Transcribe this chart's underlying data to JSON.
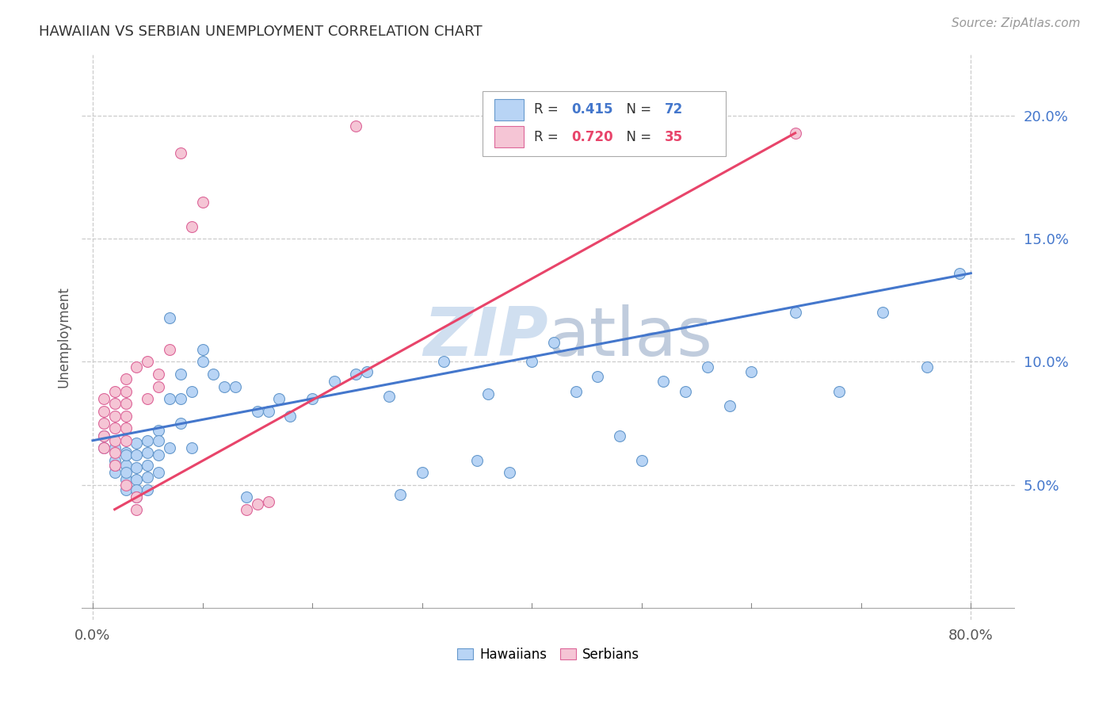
{
  "title": "HAWAIIAN VS SERBIAN UNEMPLOYMENT CORRELATION CHART",
  "source": "Source: ZipAtlas.com",
  "ylabel": "Unemployment",
  "xlim": [
    0.0,
    0.8
  ],
  "ylim": [
    0.0,
    0.22
  ],
  "x_ticks": [
    0.0,
    0.8
  ],
  "x_tick_labels": [
    "0.0%",
    "80.0%"
  ],
  "y_ticks": [
    0.05,
    0.1,
    0.15,
    0.2
  ],
  "y_tick_labels": [
    "5.0%",
    "10.0%",
    "15.0%",
    "20.0%"
  ],
  "hawaiian_color": "#b8d4f5",
  "hawaiian_edge": "#6699cc",
  "serbian_color": "#f5c5d5",
  "serbian_edge": "#dd6699",
  "blue_line_color": "#4477cc",
  "pink_line_color": "#e8446a",
  "watermark_color": "#d0dff0",
  "R_hawaiian": 0.415,
  "N_hawaiian": 72,
  "R_serbian": 0.72,
  "N_serbian": 35,
  "hawaiian_x": [
    0.01,
    0.01,
    0.02,
    0.02,
    0.02,
    0.02,
    0.03,
    0.03,
    0.03,
    0.03,
    0.03,
    0.03,
    0.04,
    0.04,
    0.04,
    0.04,
    0.04,
    0.04,
    0.05,
    0.05,
    0.05,
    0.05,
    0.05,
    0.06,
    0.06,
    0.06,
    0.06,
    0.07,
    0.07,
    0.07,
    0.08,
    0.08,
    0.08,
    0.09,
    0.09,
    0.1,
    0.1,
    0.11,
    0.12,
    0.13,
    0.14,
    0.15,
    0.16,
    0.17,
    0.18,
    0.2,
    0.22,
    0.24,
    0.25,
    0.27,
    0.28,
    0.3,
    0.32,
    0.35,
    0.36,
    0.38,
    0.4,
    0.42,
    0.44,
    0.46,
    0.48,
    0.5,
    0.52,
    0.54,
    0.56,
    0.58,
    0.6,
    0.64,
    0.68,
    0.72,
    0.76,
    0.79
  ],
  "hawaiian_y": [
    0.065,
    0.07,
    0.065,
    0.06,
    0.055,
    0.058,
    0.063,
    0.058,
    0.052,
    0.048,
    0.055,
    0.062,
    0.067,
    0.062,
    0.057,
    0.052,
    0.048,
    0.045,
    0.068,
    0.063,
    0.058,
    0.053,
    0.048,
    0.072,
    0.068,
    0.062,
    0.055,
    0.118,
    0.085,
    0.065,
    0.095,
    0.085,
    0.075,
    0.088,
    0.065,
    0.105,
    0.1,
    0.095,
    0.09,
    0.09,
    0.045,
    0.08,
    0.08,
    0.085,
    0.078,
    0.085,
    0.092,
    0.095,
    0.096,
    0.086,
    0.046,
    0.055,
    0.1,
    0.06,
    0.087,
    0.055,
    0.1,
    0.108,
    0.088,
    0.094,
    0.07,
    0.06,
    0.092,
    0.088,
    0.098,
    0.082,
    0.096,
    0.12,
    0.088,
    0.12,
    0.098,
    0.136
  ],
  "serbian_x": [
    0.01,
    0.01,
    0.01,
    0.01,
    0.01,
    0.02,
    0.02,
    0.02,
    0.02,
    0.02,
    0.02,
    0.02,
    0.03,
    0.03,
    0.03,
    0.03,
    0.03,
    0.03,
    0.03,
    0.04,
    0.04,
    0.04,
    0.05,
    0.05,
    0.06,
    0.06,
    0.07,
    0.08,
    0.09,
    0.1,
    0.14,
    0.15,
    0.16,
    0.24,
    0.64
  ],
  "serbian_y": [
    0.085,
    0.08,
    0.075,
    0.07,
    0.065,
    0.088,
    0.083,
    0.078,
    0.073,
    0.068,
    0.063,
    0.058,
    0.093,
    0.088,
    0.083,
    0.078,
    0.073,
    0.068,
    0.05,
    0.098,
    0.045,
    0.04,
    0.1,
    0.085,
    0.095,
    0.09,
    0.105,
    0.185,
    0.155,
    0.165,
    0.04,
    0.042,
    0.043,
    0.196,
    0.193
  ],
  "h_line_x0": 0.0,
  "h_line_x1": 0.8,
  "h_line_y0": 0.068,
  "h_line_y1": 0.136,
  "s_line_x0": 0.02,
  "s_line_x1": 0.64,
  "s_line_y0": 0.04,
  "s_line_y1": 0.193,
  "grid_color": "#cccccc",
  "background_color": "#ffffff",
  "title_color": "#333333",
  "source_color": "#999999",
  "tick_color_y": "#4477cc",
  "tick_color_x": "#555555"
}
